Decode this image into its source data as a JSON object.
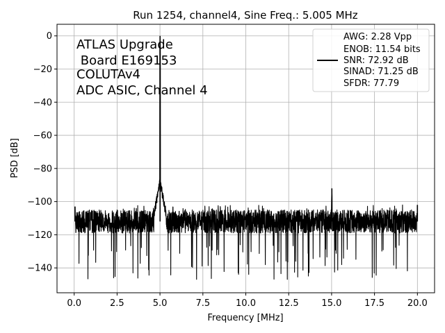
{
  "chart_data": {
    "type": "line",
    "title": "Run 1254, channel4, Sine Freq.: 5.005 MHz",
    "xlabel": "Frequency [MHz]",
    "ylabel": "PSD [dB]",
    "xlim": [
      -1.0,
      21.0
    ],
    "ylim": [
      -155,
      7
    ],
    "xticks": [
      0.0,
      2.5,
      5.0,
      7.5,
      10.0,
      12.5,
      15.0,
      17.5,
      20.0
    ],
    "xtick_labels": [
      "0.0",
      "2.5",
      "5.0",
      "7.5",
      "10.0",
      "12.5",
      "15.0",
      "17.5",
      "20.0"
    ],
    "yticks": [
      0,
      -20,
      -40,
      -60,
      -80,
      -100,
      -120,
      -140
    ],
    "ytick_labels": [
      "0",
      "−20",
      "−40",
      "−60",
      "−80",
      "−100",
      "−120",
      "−140"
    ],
    "grid": true,
    "annotation": [
      "ATLAS Upgrade",
      " Board E169153",
      "COLUTAv4",
      "ADC ASIC, Channel 4"
    ],
    "legend": {
      "placement": "top-right",
      "entries": [
        "AWG: 2.28 Vpp",
        "ENOB: 11.54 bits",
        "SNR: 72.92 dB",
        "SINAD: 71.25 dB",
        "SFDR: 77.79"
      ]
    },
    "line_color": "#000000",
    "series": [
      {
        "x": [
          0.05,
          5.005,
          15.015,
          20.0
        ],
        "y": [
          -103,
          0,
          -92,
          -102
        ],
        "noise_floor_db": -112,
        "noise_floor_minimum_db": -147
      }
    ]
  }
}
